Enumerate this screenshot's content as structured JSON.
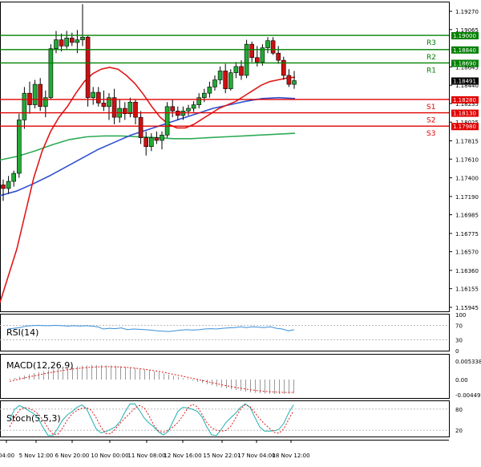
{
  "chart_data": {
    "type": "candlestick",
    "symbol_timeframe": "EURUSD H4",
    "price_axis": {
      "ticks": [
        "1.19270",
        "1.19065",
        "1.18645",
        "1.18440",
        "1.18235",
        "1.18025",
        "1.17815",
        "1.17610",
        "1.17400",
        "1.17190",
        "1.16985",
        "1.16775",
        "1.16570",
        "1.16360",
        "1.16155",
        "1.15945"
      ],
      "range": [
        1.159,
        1.1937
      ]
    },
    "time_labels": [
      "04:00",
      "5 Nov 12:00",
      "6 Nov 20:00",
      "10 Nov 00:00",
      "11 Nov 08:00",
      "12 Nov 16:00",
      "15 Nov 22:01",
      "17 Nov 04:00",
      "18 Nov 12:00"
    ],
    "current_price": "1.18491",
    "levels": [
      {
        "name": "R3",
        "value": "1.19000",
        "kind": "resistance",
        "color": "#008000"
      },
      {
        "name": "R2",
        "value": "1.18840",
        "kind": "resistance",
        "color": "#008000"
      },
      {
        "name": "R1",
        "value": "1.18690",
        "kind": "resistance",
        "color": "#008000"
      },
      {
        "name": "",
        "value": "1.18491",
        "kind": "price",
        "color": "#000000"
      },
      {
        "name": "S1",
        "value": "1.18280",
        "kind": "support",
        "color": "#e00000"
      },
      {
        "name": "S2",
        "value": "1.18130",
        "kind": "support",
        "color": "#e00000"
      },
      {
        "name": "S3",
        "value": "1.17980",
        "kind": "support",
        "color": "#e00000"
      }
    ],
    "candles": [
      [
        1.1732,
        1.1738,
        1.1714,
        1.1728
      ],
      [
        1.1728,
        1.1742,
        1.1722,
        1.1736
      ],
      [
        1.1736,
        1.1748,
        1.173,
        1.1745
      ],
      [
        1.1745,
        1.1812,
        1.174,
        1.1805
      ],
      [
        1.1805,
        1.1842,
        1.1795,
        1.1835
      ],
      [
        1.1835,
        1.1848,
        1.1812,
        1.1822
      ],
      [
        1.1822,
        1.185,
        1.1818,
        1.1845
      ],
      [
        1.1845,
        1.1852,
        1.1815,
        1.182
      ],
      [
        1.182,
        1.1838,
        1.1808,
        1.183
      ],
      [
        1.183,
        1.189,
        1.1828,
        1.1885
      ],
      [
        1.1885,
        1.1905,
        1.188,
        1.1895
      ],
      [
        1.1895,
        1.1902,
        1.1882,
        1.1888
      ],
      [
        1.1888,
        1.1905,
        1.1885,
        1.1897
      ],
      [
        1.1897,
        1.1903,
        1.1888,
        1.1892
      ],
      [
        1.1892,
        1.1906,
        1.188,
        1.1895
      ],
      [
        1.1895,
        1.1935,
        1.1888,
        1.1898
      ],
      [
        1.1898,
        1.19,
        1.182,
        1.183
      ],
      [
        1.183,
        1.1842,
        1.1822,
        1.1836
      ],
      [
        1.1836,
        1.1842,
        1.182,
        1.1824
      ],
      [
        1.1824,
        1.1838,
        1.1815,
        1.182
      ],
      [
        1.182,
        1.1835,
        1.1805,
        1.183
      ],
      [
        1.183,
        1.184,
        1.18,
        1.1808
      ],
      [
        1.1808,
        1.1828,
        1.1802,
        1.1818
      ],
      [
        1.1818,
        1.1825,
        1.1805,
        1.1812
      ],
      [
        1.1812,
        1.183,
        1.1808,
        1.1825
      ],
      [
        1.1825,
        1.1828,
        1.18,
        1.1808
      ],
      [
        1.1808,
        1.1815,
        1.1778,
        1.1785
      ],
      [
        1.1785,
        1.1792,
        1.1765,
        1.1775
      ],
      [
        1.1775,
        1.179,
        1.177,
        1.1785
      ],
      [
        1.1785,
        1.1792,
        1.1778,
        1.1782
      ],
      [
        1.1782,
        1.1792,
        1.1772,
        1.1788
      ],
      [
        1.1788,
        1.1825,
        1.1785,
        1.182
      ],
      [
        1.182,
        1.1828,
        1.1808,
        1.1815
      ],
      [
        1.1815,
        1.182,
        1.1805,
        1.181
      ],
      [
        1.181,
        1.182,
        1.1805,
        1.1815
      ],
      [
        1.1815,
        1.1822,
        1.181,
        1.1818
      ],
      [
        1.1818,
        1.1826,
        1.1814,
        1.1822
      ],
      [
        1.1822,
        1.1835,
        1.1818,
        1.183
      ],
      [
        1.183,
        1.184,
        1.1825,
        1.1835
      ],
      [
        1.1835,
        1.1848,
        1.183,
        1.1842
      ],
      [
        1.1842,
        1.1855,
        1.1838,
        1.185
      ],
      [
        1.185,
        1.1865,
        1.1845,
        1.186
      ],
      [
        1.186,
        1.1868,
        1.1835,
        1.184
      ],
      [
        1.184,
        1.1862,
        1.1838,
        1.1858
      ],
      [
        1.1858,
        1.187,
        1.1852,
        1.1865
      ],
      [
        1.1865,
        1.1872,
        1.185,
        1.1855
      ],
      [
        1.1855,
        1.1895,
        1.1852,
        1.189
      ],
      [
        1.189,
        1.1893,
        1.187,
        1.1875
      ],
      [
        1.1875,
        1.1888,
        1.1865,
        1.187
      ],
      [
        1.187,
        1.189,
        1.1866,
        1.1886
      ],
      [
        1.1886,
        1.1898,
        1.188,
        1.1894
      ],
      [
        1.1894,
        1.1898,
        1.1878,
        1.188
      ],
      [
        1.188,
        1.1888,
        1.1868,
        1.1872
      ],
      [
        1.1872,
        1.1876,
        1.185,
        1.1855
      ],
      [
        1.1855,
        1.1862,
        1.1842,
        1.1845
      ],
      [
        1.1845,
        1.186,
        1.184,
        1.18491
      ]
    ],
    "ma_fast": [
      1.16,
      1.163,
      1.166,
      1.17,
      1.174,
      1.177,
      1.1792,
      1.1808,
      1.182,
      1.1835,
      1.1848,
      1.1857,
      1.1862,
      1.1864,
      1.1862,
      1.1855,
      1.1846,
      1.1834,
      1.182,
      1.1808,
      1.18,
      1.1796,
      1.1796,
      1.18,
      1.1806,
      1.1812,
      1.1818,
      1.1822,
      1.1826,
      1.1832,
      1.1838,
      1.1844,
      1.1848,
      1.185,
      1.1852,
      1.1853
    ],
    "ma_mid": [
      1.172,
      1.1725,
      1.1733,
      1.1742,
      1.1752,
      1.1762,
      1.1772,
      1.178,
      1.1788,
      1.1794,
      1.18,
      1.1806,
      1.1812,
      1.1818,
      1.1822,
      1.1826,
      1.1829,
      1.183,
      1.1829
    ],
    "ma_slow": [
      1.176,
      1.1764,
      1.177,
      1.1777,
      1.1783,
      1.1786,
      1.1787,
      1.1787,
      1.1786,
      1.1785,
      1.1784,
      1.1784,
      1.1785,
      1.1786,
      1.1787,
      1.1788,
      1.1789,
      1.179
    ],
    "indicators": [
      {
        "name": "RSI(14)",
        "ticks": [
          "100",
          "70",
          "30",
          "0"
        ]
      },
      {
        "name": "MACD(12,26,9)",
        "ticks": [
          "0.005338",
          "0.00",
          "-0.004497"
        ]
      },
      {
        "name": "Stoch(5,5,3)",
        "ticks": [
          "80",
          "20"
        ]
      }
    ],
    "rsi_values": [
      60,
      62,
      64,
      68,
      69,
      70,
      69,
      69,
      70,
      69,
      68,
      69,
      68,
      69,
      68,
      66,
      60,
      62,
      61,
      63,
      58,
      60,
      59,
      58,
      57,
      55,
      54,
      53,
      55,
      57,
      58,
      57,
      58,
      60,
      61,
      60,
      62,
      63,
      64,
      66,
      64,
      66,
      65,
      64,
      66,
      62,
      60,
      55,
      58
    ]
  }
}
